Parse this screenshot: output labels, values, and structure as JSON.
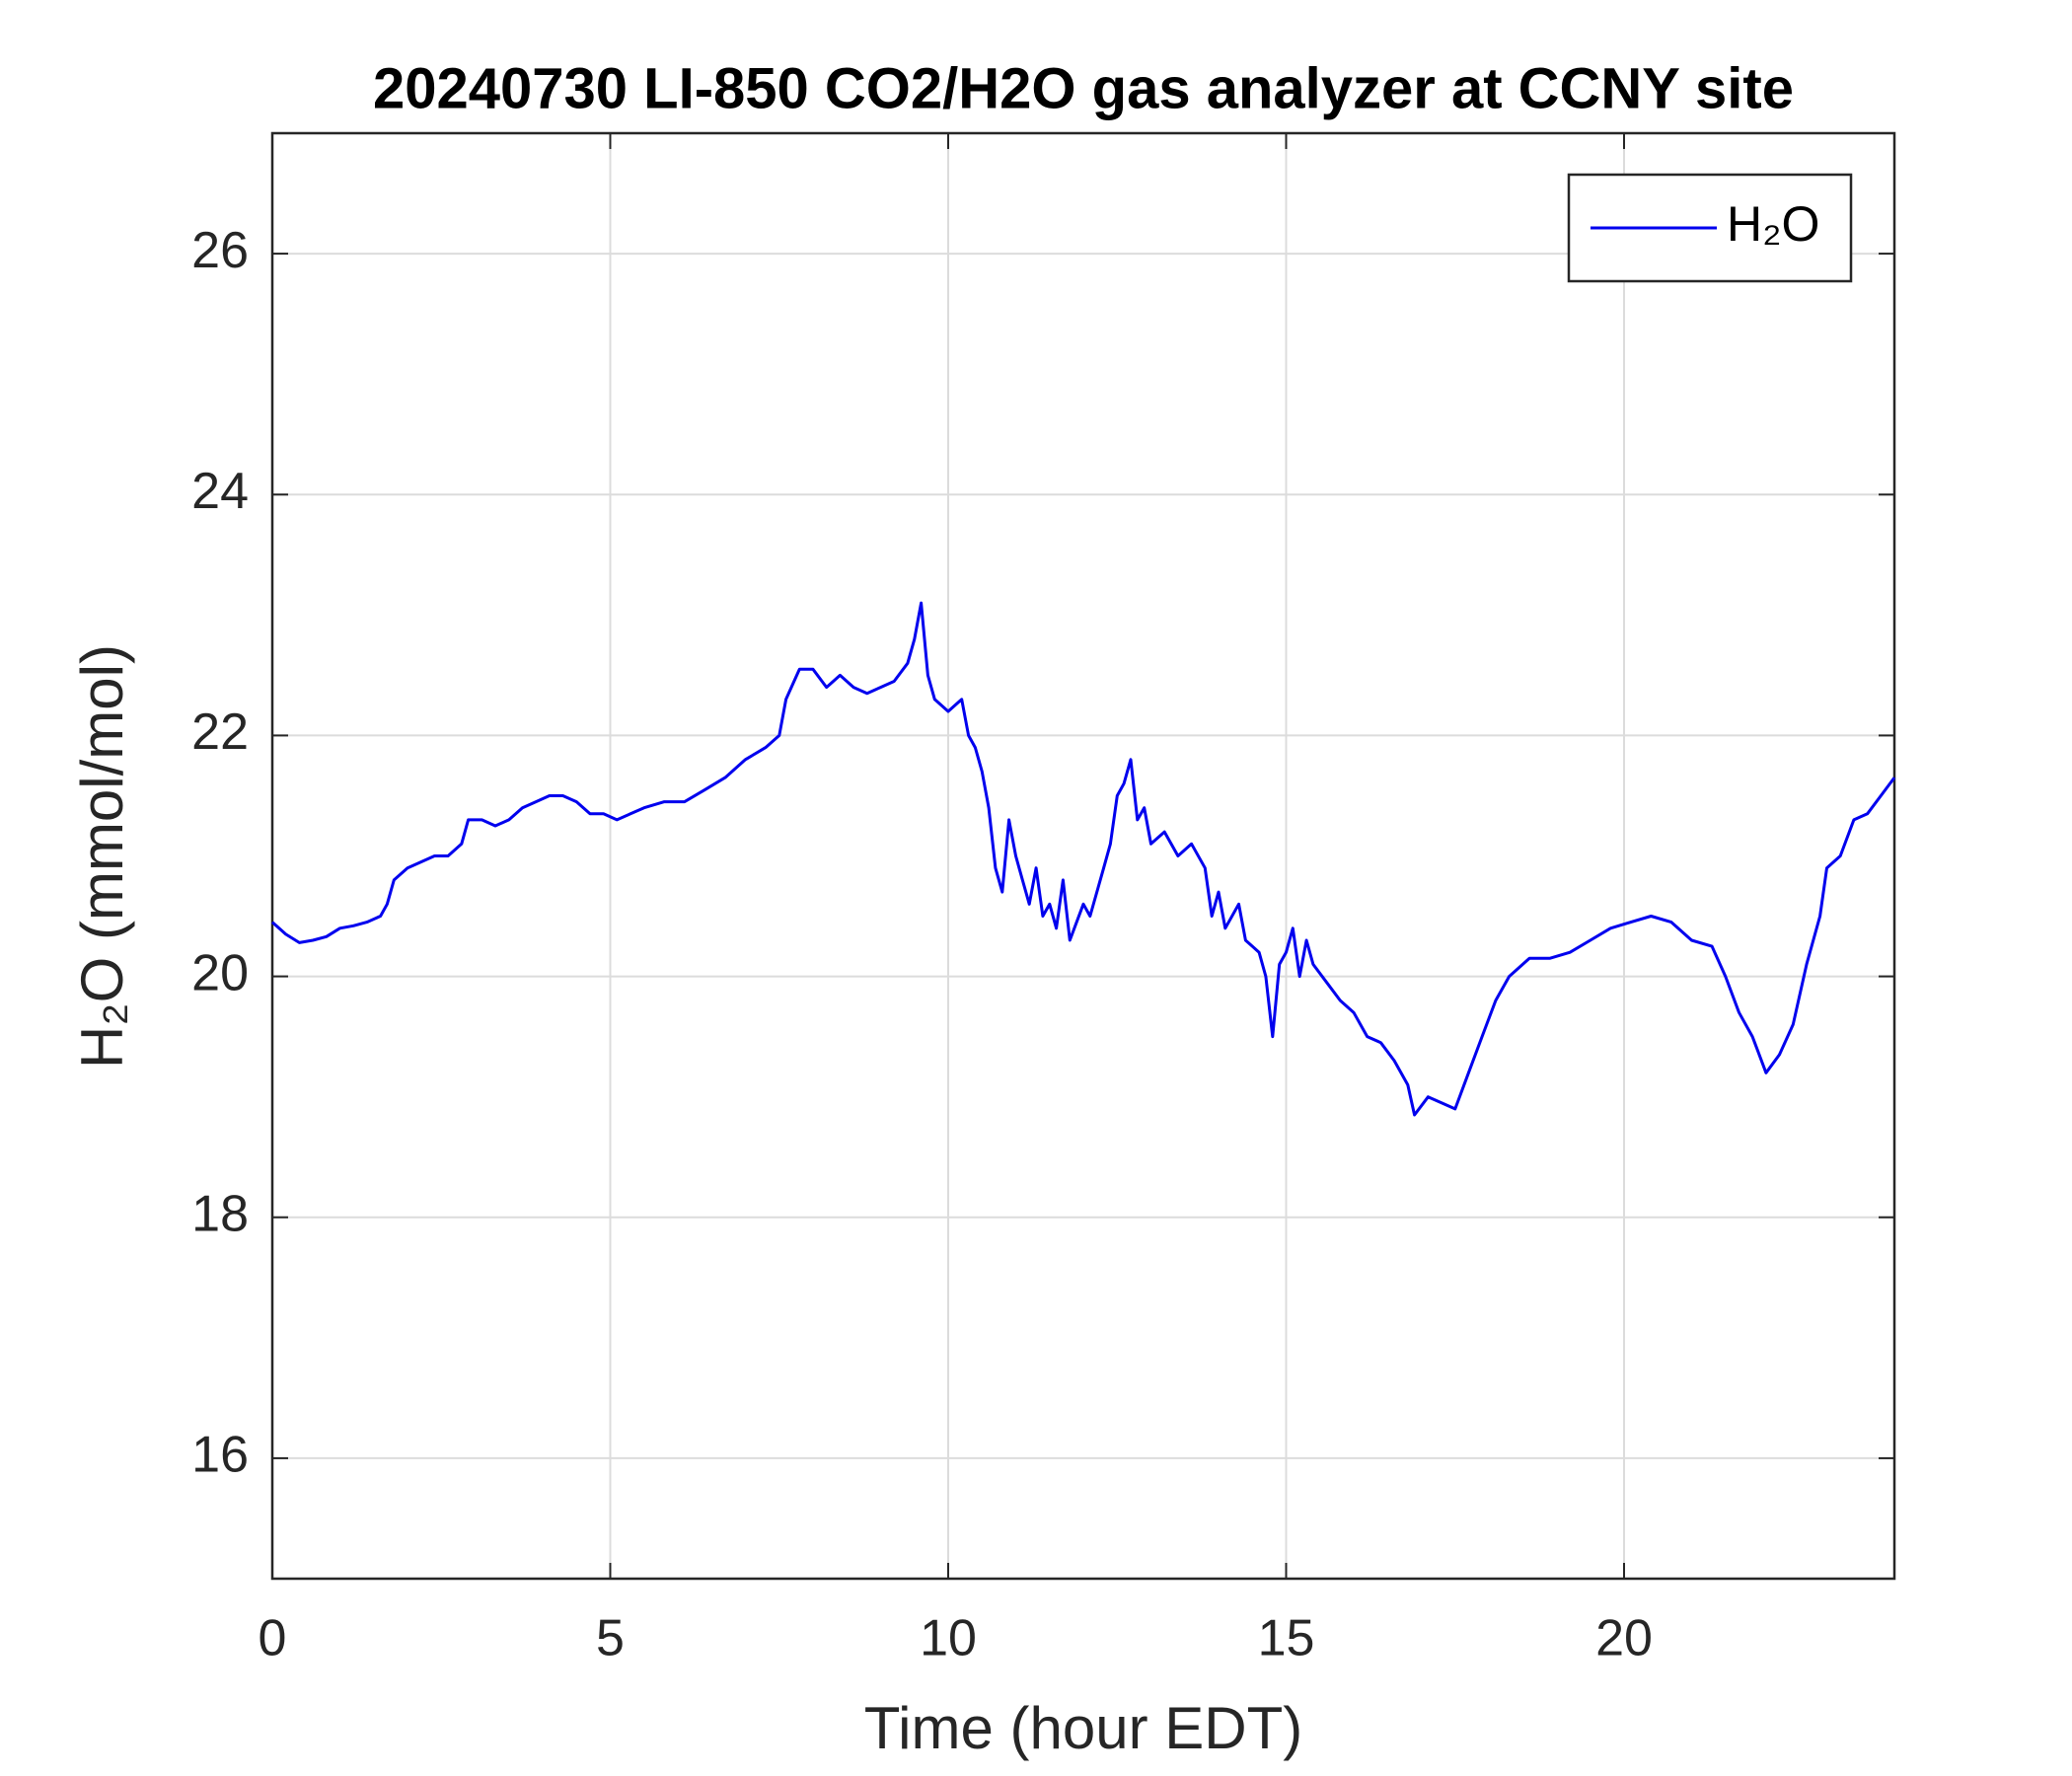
{
  "chart_data": {
    "type": "line",
    "title": "20240730 LI-850 CO2/H2O gas analyzer at CCNY site",
    "xlabel": "Time (hour EDT)",
    "ylabel": "H₂O (mmol/mol)",
    "xlim": [
      0,
      24
    ],
    "xticks": [
      0,
      5,
      10,
      15,
      20
    ],
    "ylim": [
      15,
      27
    ],
    "yticks": [
      16,
      18,
      20,
      22,
      24,
      26
    ],
    "grid": true,
    "legend": "upper right",
    "x": [
      0,
      0.2,
      0.4,
      0.6,
      0.8,
      1.0,
      1.2,
      1.4,
      1.6,
      1.7,
      1.8,
      2.0,
      2.2,
      2.4,
      2.6,
      2.8,
      2.9,
      3.1,
      3.3,
      3.5,
      3.7,
      3.9,
      4.1,
      4.3,
      4.5,
      4.7,
      4.9,
      5.1,
      5.3,
      5.5,
      5.8,
      6.1,
      6.4,
      6.7,
      7.0,
      7.3,
      7.5,
      7.6,
      7.8,
      8.0,
      8.2,
      8.4,
      8.6,
      8.8,
      9.0,
      9.2,
      9.4,
      9.5,
      9.6,
      9.7,
      9.8,
      10.0,
      10.2,
      10.3,
      10.4,
      10.5,
      10.6,
      10.7,
      10.8,
      10.9,
      11.0,
      11.1,
      11.2,
      11.3,
      11.4,
      11.5,
      11.6,
      11.7,
      11.8,
      12.0,
      12.1,
      12.3,
      12.4,
      12.5,
      12.6,
      12.7,
      12.8,
      12.9,
      13.0,
      13.2,
      13.4,
      13.6,
      13.8,
      13.9,
      14.0,
      14.1,
      14.3,
      14.4,
      14.6,
      14.7,
      14.8,
      14.9,
      15.0,
      15.1,
      15.2,
      15.3,
      15.4,
      15.6,
      15.8,
      16.0,
      16.2,
      16.4,
      16.6,
      16.8,
      16.9,
      17.1,
      17.3,
      17.5,
      17.7,
      17.9,
      18.1,
      18.3,
      18.6,
      18.9,
      19.2,
      19.5,
      19.8,
      20.1,
      20.4,
      20.7,
      21.0,
      21.3,
      21.5,
      21.7,
      21.9,
      22.1,
      22.3,
      22.5,
      22.7,
      22.9,
      23.0,
      23.2,
      23.4,
      23.6,
      23.8,
      24.0
    ],
    "series": [
      {
        "name": "H₂O",
        "color": "#0000ee",
        "values": [
          20.45,
          20.35,
          20.28,
          20.3,
          20.33,
          20.4,
          20.42,
          20.45,
          20.5,
          20.6,
          20.8,
          20.9,
          20.95,
          21.0,
          21.0,
          21.1,
          21.3,
          21.3,
          21.25,
          21.3,
          21.4,
          21.45,
          21.5,
          21.5,
          21.45,
          21.35,
          21.35,
          21.3,
          21.35,
          21.4,
          21.45,
          21.45,
          21.55,
          21.65,
          21.8,
          21.9,
          22.0,
          22.3,
          22.55,
          22.55,
          22.4,
          22.5,
          22.4,
          22.35,
          22.4,
          22.45,
          22.6,
          22.8,
          23.1,
          22.5,
          22.3,
          22.2,
          22.3,
          22.0,
          21.9,
          21.7,
          21.4,
          20.9,
          20.7,
          21.3,
          21.0,
          20.8,
          20.6,
          20.9,
          20.5,
          20.6,
          20.4,
          20.8,
          20.3,
          20.6,
          20.5,
          20.9,
          21.1,
          21.5,
          21.6,
          21.8,
          21.3,
          21.4,
          21.1,
          21.2,
          21.0,
          21.1,
          20.9,
          20.5,
          20.7,
          20.4,
          20.6,
          20.3,
          20.2,
          20.0,
          19.5,
          20.1,
          20.2,
          20.4,
          20.0,
          20.3,
          20.1,
          19.95,
          19.8,
          19.7,
          19.5,
          19.45,
          19.3,
          19.1,
          18.85,
          19.0,
          18.95,
          18.9,
          19.2,
          19.5,
          19.8,
          20.0,
          20.15,
          20.15,
          20.2,
          20.3,
          20.4,
          20.45,
          20.5,
          20.45,
          20.3,
          20.25,
          20.0,
          19.7,
          19.5,
          19.2,
          19.35,
          19.6,
          20.1,
          20.5,
          20.9,
          21.0,
          21.3,
          21.35,
          21.5,
          21.65
        ]
      }
    ]
  }
}
